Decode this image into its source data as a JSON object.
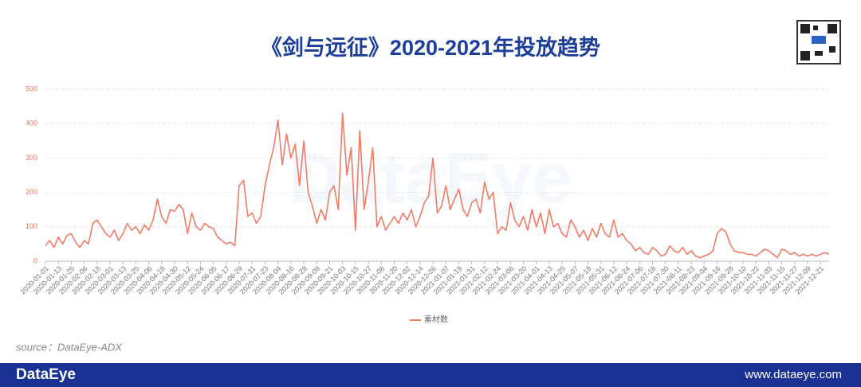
{
  "chart_data": {
    "type": "line",
    "title": "《剑与远征》2020-2021年投放趋势",
    "watermark": "DataEye",
    "source": "source：DataEye-ADX",
    "footer_brand": "DataEye",
    "footer_url": "www.dataeye.com",
    "categories": [
      "2020-01-01",
      null,
      null,
      "2020-01-13",
      null,
      null,
      "2020-01-25",
      null,
      null,
      "2020-02-06",
      null,
      null,
      "2020-02-18",
      null,
      null,
      "2020-03-01",
      null,
      null,
      "2020-03-13",
      null,
      null,
      "2020-03-25",
      null,
      null,
      "2020-04-06",
      null,
      null,
      "2020-04-18",
      null,
      null,
      "2020-04-30",
      null,
      null,
      "2020-05-12",
      null,
      null,
      "2020-05-24",
      null,
      null,
      "2020-06-05",
      null,
      null,
      "2020-06-17",
      null,
      null,
      "2020-06-29",
      null,
      null,
      "2020-07-11",
      null,
      null,
      "2020-07-23",
      null,
      null,
      "2020-08-04",
      null,
      null,
      "2020-08-16",
      null,
      null,
      "2020-08-28",
      null,
      null,
      "2020-09-09",
      null,
      null,
      "2020-09-21",
      null,
      null,
      "2020-10-03",
      null,
      null,
      "2020-10-15",
      null,
      null,
      "2020-10-27",
      null,
      null,
      "2020-11-08",
      null,
      null,
      "2020-11-20",
      null,
      null,
      "2020-12-02",
      null,
      null,
      "2020-12-14",
      null,
      null,
      "2020-12-26",
      null,
      null,
      "2021-01-07",
      null,
      null,
      "2021-01-19",
      null,
      null,
      "2021-01-31",
      null,
      null,
      "2021-02-12",
      null,
      null,
      "2021-02-24",
      null,
      null,
      "2021-03-08",
      null,
      null,
      "2021-03-20",
      null,
      null,
      "2021-04-01",
      null,
      null,
      "2021-04-13",
      null,
      null,
      "2021-04-25",
      null,
      null,
      "2021-05-07",
      null,
      null,
      "2021-05-19",
      null,
      null,
      "2021-05-31",
      null,
      null,
      "2021-06-12",
      null,
      null,
      "2021-06-24",
      null,
      null,
      "2021-07-06",
      null,
      null,
      "2021-07-18",
      null,
      null,
      "2021-07-30",
      null,
      null,
      "2021-08-11",
      null,
      null,
      "2021-08-23",
      null,
      null,
      "2021-09-04",
      null,
      null,
      "2021-09-16",
      null,
      null,
      "2021-09-28",
      null,
      null,
      "2021-10-10",
      null,
      null,
      "2021-10-22",
      null,
      null,
      "2021-11-03",
      null,
      null,
      "2021-11-15",
      null,
      null,
      "2021-11-27",
      null,
      null,
      "2021-12-09",
      null,
      null,
      "2021-12-21",
      null,
      null
    ],
    "series": [
      {
        "name": "素材数",
        "color": "#f07c66",
        "values": [
          45,
          60,
          40,
          70,
          50,
          75,
          80,
          55,
          40,
          60,
          50,
          110,
          120,
          100,
          80,
          70,
          90,
          60,
          80,
          110,
          90,
          100,
          80,
          105,
          90,
          120,
          180,
          130,
          110,
          150,
          145,
          165,
          150,
          80,
          140,
          100,
          90,
          110,
          100,
          95,
          70,
          60,
          50,
          55,
          45,
          220,
          235,
          130,
          140,
          110,
          130,
          220,
          280,
          330,
          410,
          280,
          370,
          300,
          340,
          220,
          350,
          200,
          160,
          110,
          150,
          120,
          200,
          220,
          150,
          430,
          250,
          330,
          90,
          380,
          150,
          230,
          330,
          100,
          130,
          90,
          110,
          130,
          110,
          140,
          120,
          150,
          100,
          130,
          170,
          190,
          300,
          140,
          160,
          220,
          150,
          180,
          210,
          150,
          130,
          170,
          180,
          140,
          230,
          180,
          200,
          80,
          100,
          90,
          170,
          120,
          100,
          130,
          90,
          150,
          100,
          140,
          80,
          150,
          100,
          110,
          80,
          70,
          120,
          100,
          70,
          90,
          60,
          95,
          70,
          110,
          80,
          70,
          120,
          70,
          80,
          60,
          50,
          30,
          40,
          25,
          20,
          40,
          30,
          15,
          20,
          45,
          30,
          25,
          40,
          20,
          30,
          15,
          10,
          15,
          20,
          30,
          80,
          95,
          85,
          50,
          30,
          25,
          25,
          20,
          20,
          15,
          25,
          35,
          30,
          20,
          10,
          35,
          30,
          20,
          25,
          15,
          20,
          15,
          20,
          15,
          20,
          25,
          20
        ]
      }
    ],
    "ylim": [
      0,
      500
    ],
    "yticks": [
      0,
      100,
      200,
      300,
      400,
      500
    ],
    "grid": true,
    "legend": "bottom"
  }
}
